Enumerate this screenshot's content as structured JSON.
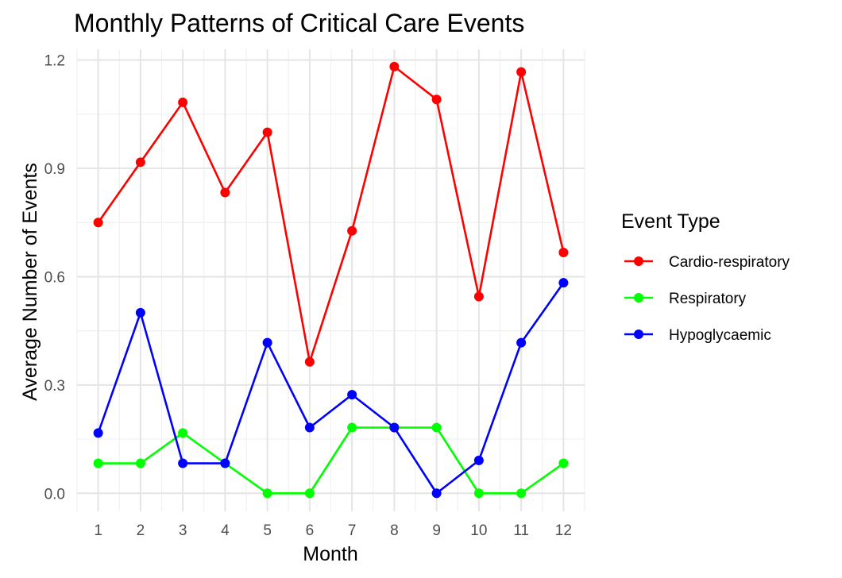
{
  "chart_data": {
    "type": "line",
    "title": "Monthly Patterns of Critical Care Events",
    "xlabel": "Month",
    "ylabel": "Average Number of Events",
    "x": [
      1,
      2,
      3,
      4,
      5,
      6,
      7,
      8,
      9,
      10,
      11,
      12
    ],
    "xticks": [
      "1",
      "2",
      "3",
      "4",
      "5",
      "6",
      "7",
      "8",
      "9",
      "10",
      "11",
      "12"
    ],
    "xlim": [
      0.5,
      12.5
    ],
    "ylim": [
      -0.05,
      1.23
    ],
    "yticks": [
      0.0,
      0.3,
      0.6,
      0.9,
      1.2
    ],
    "ytick_labels": [
      "0.0",
      "0.3",
      "0.6",
      "0.9",
      "1.2"
    ],
    "grid": true,
    "legend": {
      "title": "Event Type",
      "position": "right"
    },
    "series": [
      {
        "name": "Cardio-respiratory",
        "color": "#ff0000",
        "values": [
          0.75,
          0.917,
          1.083,
          0.833,
          1.0,
          0.364,
          0.727,
          1.182,
          1.091,
          0.545,
          1.167,
          0.667
        ]
      },
      {
        "name": "Respiratory",
        "color": "#00ff00",
        "values": [
          0.083,
          0.083,
          0.167,
          0.083,
          0.0,
          0.0,
          0.182,
          0.182,
          0.182,
          0.0,
          0.0,
          0.083
        ]
      },
      {
        "name": "Hypoglycaemic",
        "color": "#0000ff",
        "values": [
          0.167,
          0.5,
          0.083,
          0.083,
          0.417,
          0.182,
          0.273,
          0.182,
          0.0,
          0.091,
          0.417,
          0.583
        ]
      }
    ]
  }
}
